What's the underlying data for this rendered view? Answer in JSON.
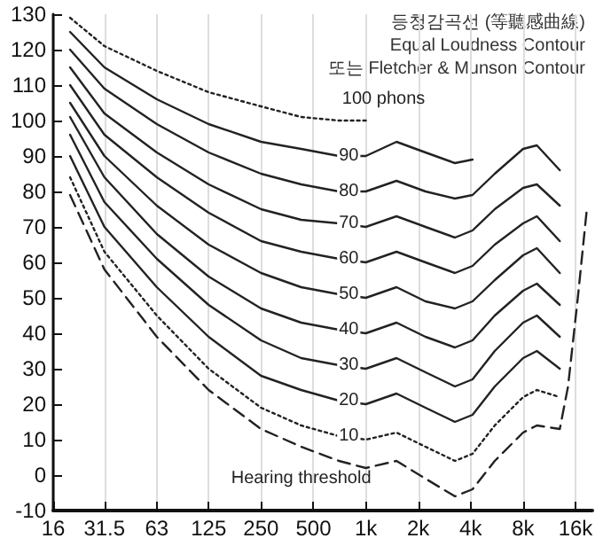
{
  "chart_data": {
    "type": "line",
    "annotations": [
      "등청감곡선 (等聽感曲線)",
      "Equal Loudness Contour",
      "또는 Fletcher & Munson Contour"
    ],
    "x": [
      20,
      31.5,
      63,
      125,
      250,
      425,
      700,
      1000,
      1500,
      2200,
      3250,
      4100,
      5500,
      8000,
      9600,
      13000
    ],
    "series": [
      {
        "name": "100 phons",
        "color": "#222222",
        "line_style": "dotted",
        "values": [
          129,
          121,
          114,
          108,
          104,
          101,
          100,
          100,
          null,
          null,
          null,
          null,
          null,
          null,
          null,
          null
        ]
      },
      {
        "name": "90",
        "color": "#222222",
        "values": [
          125,
          115,
          106,
          99,
          94,
          92,
          90,
          90,
          94,
          91,
          88,
          89,
          null,
          null,
          null,
          null
        ]
      },
      {
        "name": "80",
        "color": "#222222",
        "values": [
          120,
          109,
          99,
          91,
          85,
          82,
          80,
          80,
          83,
          80,
          78,
          79,
          85,
          92,
          93,
          86
        ]
      },
      {
        "name": "70",
        "color": "#222222",
        "values": [
          115,
          102,
          91,
          82,
          75,
          72,
          71,
          70,
          73,
          70,
          67,
          69,
          75,
          81,
          82,
          76
        ]
      },
      {
        "name": "60",
        "color": "#222222",
        "values": [
          110,
          96,
          84,
          74,
          66,
          63,
          61,
          60,
          63,
          60,
          57,
          59,
          65,
          71,
          73,
          66
        ]
      },
      {
        "name": "50",
        "color": "#222222",
        "values": [
          105,
          90,
          76,
          65,
          57,
          53,
          51,
          50,
          53,
          49,
          47,
          49,
          55,
          62,
          64,
          57
        ]
      },
      {
        "name": "40",
        "color": "#222222",
        "values": [
          101,
          84,
          68,
          56,
          47,
          43,
          41,
          40,
          43,
          39,
          36,
          38,
          45,
          52,
          54,
          48
        ]
      },
      {
        "name": "30",
        "color": "#222222",
        "values": [
          96,
          77,
          61,
          48,
          38,
          33,
          31,
          30,
          33,
          29,
          25,
          27,
          35,
          43,
          45,
          39
        ]
      },
      {
        "name": "20",
        "color": "#222222",
        "values": [
          90,
          70,
          53,
          39,
          28,
          24,
          21,
          20,
          23,
          19,
          15,
          17,
          25,
          33,
          35,
          30
        ]
      },
      {
        "name": "10",
        "color": "#222222",
        "line_style": "dotted",
        "values": [
          84,
          63,
          45,
          30,
          19,
          14,
          11,
          10,
          12,
          8,
          4,
          6,
          14,
          22,
          24,
          22
        ]
      },
      {
        "name": "Hearing threshold",
        "color": "#222222",
        "line_style": "dashed",
        "x": [
          20,
          31.5,
          63,
          125,
          250,
          425,
          700,
          1000,
          1500,
          2200,
          3250,
          4100,
          5500,
          8000,
          9600,
          13000,
          14500,
          16500,
          18500
        ],
        "values": [
          79,
          58,
          39,
          24,
          13,
          8,
          4,
          2,
          4,
          -1,
          -6,
          -4,
          4,
          12,
          14,
          13,
          25,
          50,
          74
        ]
      }
    ],
    "xlim": [
      16,
      20000
    ],
    "xticks": [
      16,
      31.5,
      63,
      125,
      250,
      500,
      {
        "value": 1000,
        "label": "1k"
      },
      {
        "value": 2000,
        "label": "2k"
      },
      {
        "value": 4000,
        "label": "4k"
      },
      {
        "value": 8000,
        "label": "8k"
      },
      {
        "value": 16000,
        "label": "16k"
      }
    ],
    "ylim": [
      -10,
      130
    ],
    "yticks": [
      -10,
      0,
      10,
      20,
      30,
      40,
      50,
      60,
      70,
      80,
      90,
      100,
      110,
      120,
      130
    ],
    "log": "x",
    "grid": "x",
    "marker": "none",
    "line_style": "solid",
    "legend": false
  }
}
